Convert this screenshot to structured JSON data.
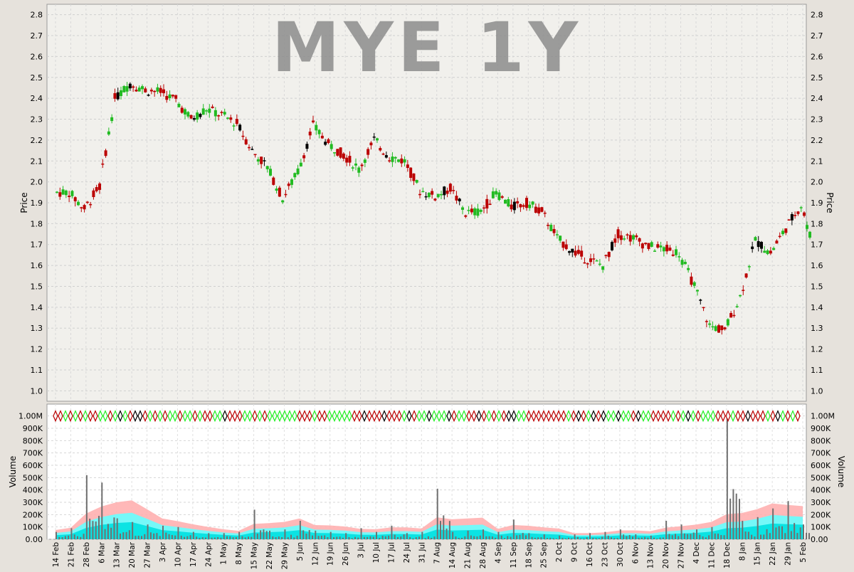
{
  "chart_data": [
    {
      "type": "candlestick",
      "title": "MYE 1Y",
      "ylabel": "Price",
      "ylim": [
        0.95,
        2.85
      ],
      "yticks": [
        1.0,
        1.1,
        1.2,
        1.3,
        1.4,
        1.5,
        1.6,
        1.7,
        1.8,
        1.9,
        2.0,
        2.1,
        2.2,
        2.3,
        2.4,
        2.5,
        2.6,
        2.7,
        2.8
      ],
      "ytick_labels": [
        "1.0",
        "1.1",
        "1.2",
        "1.3",
        "1.4",
        "1.5",
        "1.6",
        "1.7",
        "1.8",
        "1.9",
        "2.0",
        "2.1",
        "2.2",
        "2.3",
        "2.4",
        "2.5",
        "2.6",
        "2.7",
        "2.8"
      ],
      "grid": true,
      "colors": {
        "up": "#22bb22",
        "down": "#bb0000",
        "flat": "#000000"
      },
      "weekly_close": [
        {
          "date": "14 Feb",
          "close": 1.95
        },
        {
          "date": "21 Feb",
          "close": 1.87
        },
        {
          "date": "28 Feb",
          "close": 1.98
        },
        {
          "date": "6 Mar",
          "close": 2.4
        },
        {
          "date": "13 Mar",
          "close": 2.47
        },
        {
          "date": "20 Mar",
          "close": 2.44
        },
        {
          "date": "27 Mar",
          "close": 2.43
        },
        {
          "date": "3 Apr",
          "close": 2.39
        },
        {
          "date": "10 Apr",
          "close": 2.3
        },
        {
          "date": "17 Apr",
          "close": 2.35
        },
        {
          "date": "24 Apr",
          "close": 2.32
        },
        {
          "date": "1 May",
          "close": 2.28
        },
        {
          "date": "8 May",
          "close": 2.15
        },
        {
          "date": "15 May",
          "close": 2.07
        },
        {
          "date": "22 May",
          "close": 1.92
        },
        {
          "date": "29 May",
          "close": 2.05
        },
        {
          "date": "5 Jun",
          "close": 2.27
        },
        {
          "date": "12 Jun",
          "close": 2.18
        },
        {
          "date": "19 Jun",
          "close": 2.13
        },
        {
          "date": "26 Jun",
          "close": 2.06
        },
        {
          "date": "3 Jul",
          "close": 2.2
        },
        {
          "date": "10 Jul",
          "close": 2.12
        },
        {
          "date": "17 Jul",
          "close": 2.1
        },
        {
          "date": "24 Jul",
          "close": 1.96
        },
        {
          "date": "31 Jul",
          "close": 1.93
        },
        {
          "date": "7 Aug",
          "close": 1.97
        },
        {
          "date": "14 Aug",
          "close": 1.85
        },
        {
          "date": "21 Aug",
          "close": 1.86
        },
        {
          "date": "28 Aug",
          "close": 1.95
        },
        {
          "date": "4 Sep",
          "close": 1.88
        },
        {
          "date": "11 Sep",
          "close": 1.9
        },
        {
          "date": "18 Sep",
          "close": 1.86
        },
        {
          "date": "25 Sep",
          "close": 1.73
        },
        {
          "date": "2 Oct",
          "close": 1.67
        },
        {
          "date": "9 Oct",
          "close": 1.63
        },
        {
          "date": "16 Oct",
          "close": 1.6
        },
        {
          "date": "23 Oct",
          "close": 1.75
        },
        {
          "date": "30 Oct",
          "close": 1.73
        },
        {
          "date": "6 Nov",
          "close": 1.69
        },
        {
          "date": "13 Nov",
          "close": 1.68
        },
        {
          "date": "20 Nov",
          "close": 1.66
        },
        {
          "date": "27 Nov",
          "close": 1.5
        },
        {
          "date": "4 Dec",
          "close": 1.31
        },
        {
          "date": "11 Dec",
          "close": 1.29
        },
        {
          "date": "18 Dec",
          "close": 1.45
        },
        {
          "date": "8 Jan",
          "close": 1.72
        },
        {
          "date": "15 Jan",
          "close": 1.66
        },
        {
          "date": "22 Jan",
          "close": 1.78
        },
        {
          "date": "29 Jan",
          "close": 1.89
        },
        {
          "date": "5 Feb",
          "close": 1.65
        }
      ]
    },
    {
      "type": "bar",
      "ylabel": "Volume",
      "ylim": [
        0,
        1050000
      ],
      "yticks": [
        0,
        100000,
        200000,
        300000,
        400000,
        500000,
        600000,
        700000,
        800000,
        900000,
        1000000
      ],
      "ytick_labels": [
        "0.00",
        "100K",
        "200K",
        "300K",
        "400K",
        "500K",
        "600K",
        "700K",
        "800K",
        "900K",
        "1.00M"
      ],
      "grid": true,
      "colors": {
        "volume_bar": "#707070",
        "band_outer": "#ffb0b0",
        "band_mid": "#66ffff",
        "band_inner": "#00e0e0"
      },
      "weekly_volume": [
        {
          "date": "14 Feb",
          "volume": 60000
        },
        {
          "date": "21 Feb",
          "volume": 90000
        },
        {
          "date": "28 Feb",
          "volume": 520000
        },
        {
          "date": "6 Mar",
          "volume": 460000
        },
        {
          "date": "13 Mar",
          "volume": 170000
        },
        {
          "date": "20 Mar",
          "volume": 140000
        },
        {
          "date": "27 Mar",
          "volume": 120000
        },
        {
          "date": "3 Apr",
          "volume": 110000
        },
        {
          "date": "10 Apr",
          "volume": 100000
        },
        {
          "date": "17 Apr",
          "volume": 60000
        },
        {
          "date": "24 Apr",
          "volume": 50000
        },
        {
          "date": "1 May",
          "volume": 50000
        },
        {
          "date": "8 May",
          "volume": 60000
        },
        {
          "date": "15 May",
          "volume": 240000
        },
        {
          "date": "22 May",
          "volume": 70000
        },
        {
          "date": "29 May",
          "volume": 80000
        },
        {
          "date": "5 Jun",
          "volume": 150000
        },
        {
          "date": "12 Jun",
          "volume": 70000
        },
        {
          "date": "19 Jun",
          "volume": 60000
        },
        {
          "date": "26 Jun",
          "volume": 50000
        },
        {
          "date": "3 Jul",
          "volume": 90000
        },
        {
          "date": "10 Jul",
          "volume": 60000
        },
        {
          "date": "17 Jul",
          "volume": 110000
        },
        {
          "date": "24 Jul",
          "volume": 50000
        },
        {
          "date": "31 Jul",
          "volume": 60000
        },
        {
          "date": "7 Aug",
          "volume": 410000
        },
        {
          "date": "14 Aug",
          "volume": 60000
        },
        {
          "date": "21 Aug",
          "volume": 70000
        },
        {
          "date": "28 Aug",
          "volume": 80000
        },
        {
          "date": "4 Sep",
          "volume": 60000
        },
        {
          "date": "11 Sep",
          "volume": 160000
        },
        {
          "date": "18 Sep",
          "volume": 50000
        },
        {
          "date": "25 Sep",
          "volume": 40000
        },
        {
          "date": "2 Oct",
          "volume": 30000
        },
        {
          "date": "9 Oct",
          "volume": 40000
        },
        {
          "date": "16 Oct",
          "volume": 50000
        },
        {
          "date": "23 Oct",
          "volume": 60000
        },
        {
          "date": "30 Oct",
          "volume": 80000
        },
        {
          "date": "6 Nov",
          "volume": 40000
        },
        {
          "date": "13 Nov",
          "volume": 30000
        },
        {
          "date": "20 Nov",
          "volume": 150000
        },
        {
          "date": "27 Nov",
          "volume": 120000
        },
        {
          "date": "4 Dec",
          "volume": 80000
        },
        {
          "date": "11 Dec",
          "volume": 100000
        },
        {
          "date": "18 Dec",
          "volume": 980000
        },
        {
          "date": "8 Jan",
          "volume": 150000
        },
        {
          "date": "15 Jan",
          "volume": 180000
        },
        {
          "date": "22 Jan",
          "volume": 250000
        },
        {
          "date": "29 Jan",
          "volume": 310000
        },
        {
          "date": "5 Feb",
          "volume": 120000
        }
      ]
    }
  ]
}
